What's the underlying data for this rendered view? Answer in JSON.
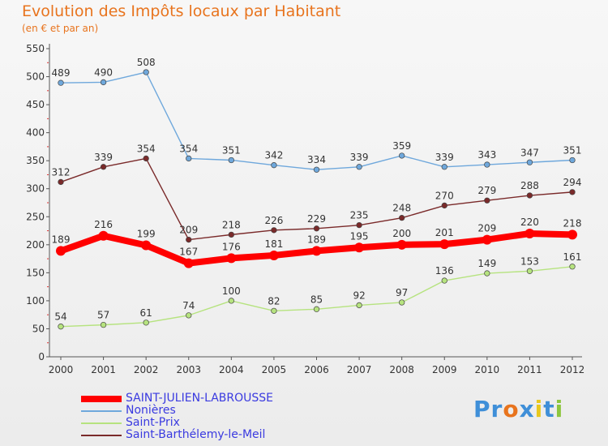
{
  "chart_data": {
    "type": "line",
    "title": "Evolution des Impôts locaux par Habitant",
    "subtitle": "(en € et par an)",
    "xlabel": "",
    "ylabel": "",
    "ylim": [
      0,
      550
    ],
    "yticks": [
      0,
      50,
      100,
      150,
      200,
      250,
      300,
      350,
      400,
      450,
      500,
      550
    ],
    "grid": false,
    "legend_position": "bottom-left",
    "categories": [
      "2000",
      "2001",
      "2002",
      "2003",
      "2004",
      "2005",
      "2006",
      "2007",
      "2008",
      "2009",
      "2010",
      "2011",
      "2012"
    ],
    "series": [
      {
        "name": "SAINT-JULIEN-LABROUSSE",
        "color": "#ff0000",
        "emphasis": true,
        "values": [
          189,
          216,
          199,
          167,
          176,
          181,
          189,
          195,
          200,
          201,
          209,
          220,
          218
        ]
      },
      {
        "name": "Nonières",
        "color": "#6fa8dc",
        "emphasis": false,
        "values": [
          489,
          490,
          508,
          354,
          351,
          342,
          334,
          339,
          359,
          339,
          343,
          347,
          351
        ]
      },
      {
        "name": "Saint-Prix",
        "color": "#b6e37f",
        "emphasis": false,
        "values": [
          54,
          57,
          61,
          74,
          100,
          82,
          85,
          92,
          97,
          136,
          149,
          153,
          161
        ]
      },
      {
        "name": "Saint-Barthélemy-le-Meil",
        "color": "#7a2a2a",
        "emphasis": false,
        "values": [
          312,
          339,
          354,
          209,
          218,
          226,
          229,
          235,
          248,
          270,
          279,
          288,
          294
        ]
      }
    ]
  },
  "brand": {
    "letters": [
      "P",
      "r",
      "o",
      "x",
      "i",
      "t",
      "i"
    ],
    "colors": [
      "#3f8fd8",
      "#3f8fd8",
      "#e8741e",
      "#3f8fd8",
      "#e8c81e",
      "#3f8fd8",
      "#8dc63f"
    ]
  }
}
